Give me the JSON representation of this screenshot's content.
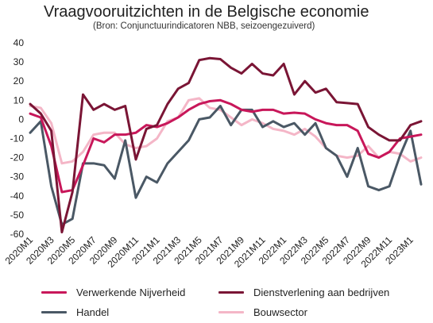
{
  "chart_data": {
    "type": "line",
    "title": "Vraagvooruitzichten in de Belgische economie",
    "subtitle": "(Bron: Conjunctuurindicatoren NBB, seizoengezuiverd)",
    "xlabel": "",
    "ylabel": "",
    "ylim": [
      -60,
      40
    ],
    "yticks": [
      40,
      30,
      20,
      10,
      0,
      -10,
      -20,
      -30,
      -40,
      -50,
      -60
    ],
    "xtick_labels": [
      "2020M1",
      "2020M3",
      "2020M5",
      "2020M7",
      "2020M9",
      "2020M11",
      "2021M1",
      "2021M3",
      "2021M5",
      "2021M7",
      "2021M9",
      "2021M11",
      "2022M1",
      "2022M3",
      "2022M5",
      "2022M7",
      "2022M9",
      "2022M11",
      "2023M1"
    ],
    "grid": false,
    "legend_position": "bottom",
    "x": [
      "2020M1",
      "2020M2",
      "2020M3",
      "2020M4",
      "2020M5",
      "2020M6",
      "2020M7",
      "2020M8",
      "2020M9",
      "2020M10",
      "2020M11",
      "2020M12",
      "2021M1",
      "2021M2",
      "2021M3",
      "2021M4",
      "2021M5",
      "2021M6",
      "2021M7",
      "2021M8",
      "2021M9",
      "2021M10",
      "2021M11",
      "2021M12",
      "2022M1",
      "2022M2",
      "2022M3",
      "2022M4",
      "2022M5",
      "2022M6",
      "2022M7",
      "2022M8",
      "2022M9",
      "2022M10",
      "2022M11",
      "2022M12",
      "2023M1",
      "2023M2"
    ],
    "series": [
      {
        "name": "Verwerkende Nijverheid",
        "color": "#c8175a",
        "values": [
          3,
          1,
          -14,
          -38,
          -37,
          -24,
          -10,
          -12,
          -8,
          -8,
          -7,
          -3,
          -4,
          -2,
          1,
          5,
          8,
          9.5,
          10,
          8,
          5,
          4,
          5,
          5,
          3,
          3.5,
          3,
          0,
          -2,
          -3,
          -3,
          -6,
          -18,
          -20,
          -17,
          -10,
          -9,
          -8
        ]
      },
      {
        "name": "Dienstverlening aan bedrijven",
        "color": "#7a1535",
        "values": [
          8,
          3,
          -6,
          -59,
          -38,
          13,
          5,
          8,
          5,
          7,
          -21,
          -5,
          -3,
          8,
          16,
          19,
          31,
          32,
          31.5,
          27,
          24,
          29,
          24,
          23,
          29,
          13,
          20,
          14,
          16,
          9,
          8.5,
          8,
          -4,
          -8,
          -11,
          -11,
          -3,
          -1
        ]
      },
      {
        "name": "Handel",
        "color": "#4a5865",
        "values": [
          -7,
          -1,
          -35,
          -55,
          -52,
          -23,
          -23,
          -24,
          -31,
          -11,
          -41,
          -30,
          -33,
          -23,
          -17,
          -11,
          0,
          1,
          7,
          -3,
          5,
          5,
          -4,
          -1,
          -4,
          -2,
          -8,
          -2,
          -15,
          -19,
          -30,
          -15,
          -35,
          -37,
          -35,
          -19,
          -6,
          -34
        ]
      },
      {
        "name": "Bouwsector",
        "color": "#f4b6c7",
        "values": [
          7,
          6,
          -2,
          -23,
          -22,
          -17,
          -8,
          -7,
          -7,
          -13,
          -15,
          -14,
          -10,
          -1,
          1,
          10,
          11,
          6,
          5,
          1,
          -3,
          0,
          -2,
          -5,
          -6,
          -8,
          -5,
          -9,
          -15,
          -19,
          -20,
          -19,
          -14,
          -20,
          -17,
          -18,
          -22,
          -20
        ]
      }
    ]
  }
}
